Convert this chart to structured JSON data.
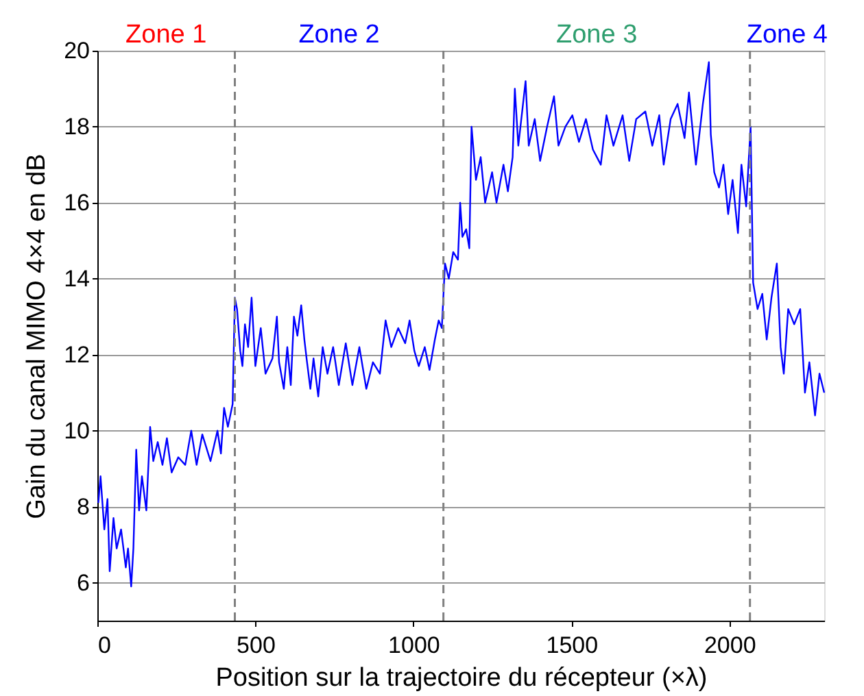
{
  "chart_data": {
    "type": "line",
    "xlabel": "Position sur la trajectoire du récepteur (×λ)",
    "ylabel": "Gain du canal MIMO 4×4 en dB",
    "xlim": [
      0,
      2300
    ],
    "xticks": [
      0,
      500,
      1000,
      1500,
      2000
    ],
    "ylim": [
      5,
      20
    ],
    "yticks": [
      6,
      8,
      10,
      12,
      14,
      16,
      18,
      20
    ],
    "grid": "y",
    "marker": "none",
    "line_style": "solid",
    "annotations": [
      "Zone 1",
      "Zone 2",
      "Zone 3",
      "Zone 4"
    ],
    "ref_lines": [
      {
        "axis": "x",
        "value": 435,
        "color": "#808080",
        "line_style": "dashed"
      },
      {
        "axis": "x",
        "value": 1095,
        "color": "#808080",
        "line_style": "dashed"
      },
      {
        "axis": "x",
        "value": 2065,
        "color": "#808080",
        "line_style": "dashed"
      }
    ],
    "series": [
      {
        "color": "#0000ff",
        "x": [
          3,
          10,
          22,
          32,
          39,
          51,
          61,
          75,
          90,
          97,
          107,
          114,
          123,
          132,
          141,
          155,
          167,
          177,
          191,
          206,
          220,
          235,
          256,
          278,
          297,
          314,
          332,
          358,
          380,
          391,
          401,
          413,
          428,
          435,
          442,
          452,
          459,
          467,
          477,
          488,
          500,
          517,
          532,
          554,
          568,
          575,
          590,
          601,
          612,
          622,
          633,
          645,
          655,
          662,
          674,
          684,
          699,
          713,
          728,
          746,
          764,
          786,
          807,
          829,
          851,
          872,
          894,
          912,
          930,
          952,
          974,
          988,
          1003,
          1017,
          1036,
          1051,
          1068,
          1080,
          1090,
          1100,
          1112,
          1126,
          1141,
          1148,
          1155,
          1167,
          1177,
          1184,
          1198,
          1213,
          1227,
          1249,
          1263,
          1285,
          1299,
          1314,
          1321,
          1332,
          1355,
          1365,
          1384,
          1401,
          1423,
          1445,
          1459,
          1481,
          1503,
          1524,
          1546,
          1568,
          1593,
          1611,
          1633,
          1662,
          1683,
          1705,
          1734,
          1756,
          1778,
          1792,
          1814,
          1836,
          1858,
          1872,
          1894,
          1916,
          1935,
          1941,
          1952,
          1967,
          1981,
          1996,
          2010,
          2027,
          2038,
          2053,
          2067,
          2075,
          2089,
          2104,
          2118,
          2133,
          2150,
          2162,
          2172,
          2186,
          2205,
          2224,
          2239,
          2253,
          2271,
          2285,
          2300
        ],
        "values": [
          8.1,
          8.8,
          7.4,
          8.2,
          6.3,
          7.7,
          6.9,
          7.4,
          6.4,
          6.9,
          5.9,
          6.9,
          9.5,
          7.9,
          8.8,
          7.9,
          10.1,
          9.2,
          9.7,
          9.1,
          9.8,
          8.9,
          9.3,
          9.1,
          10.0,
          9.1,
          9.9,
          9.2,
          10.0,
          9.4,
          10.6,
          10.1,
          10.7,
          13.5,
          13.2,
          12.1,
          11.7,
          12.8,
          12.2,
          13.5,
          11.7,
          12.7,
          11.5,
          11.9,
          13.0,
          11.8,
          11.1,
          12.2,
          11.2,
          13.0,
          12.5,
          13.3,
          12.4,
          11.9,
          11.1,
          11.9,
          10.9,
          12.2,
          11.5,
          12.2,
          11.2,
          12.3,
          11.2,
          12.2,
          11.1,
          11.8,
          11.5,
          12.9,
          12.2,
          12.7,
          12.3,
          12.9,
          12.1,
          11.7,
          12.2,
          11.6,
          12.4,
          12.9,
          12.7,
          14.4,
          14.0,
          14.7,
          14.5,
          16.0,
          15.1,
          15.3,
          14.8,
          18.0,
          16.6,
          17.2,
          16.0,
          16.8,
          16.0,
          17.0,
          16.3,
          17.2,
          19.0,
          17.5,
          19.2,
          17.5,
          18.2,
          17.1,
          18.0,
          18.8,
          17.5,
          18.0,
          18.3,
          17.6,
          18.2,
          17.4,
          17.0,
          18.3,
          17.5,
          18.3,
          17.1,
          18.2,
          18.4,
          17.5,
          18.3,
          17.0,
          18.2,
          18.6,
          17.7,
          18.9,
          17.0,
          18.6,
          19.7,
          17.8,
          16.8,
          16.4,
          17.0,
          15.7,
          16.6,
          15.2,
          17.0,
          15.9,
          18.0,
          13.9,
          13.2,
          13.6,
          12.4,
          13.5,
          14.4,
          12.2,
          11.5,
          13.2,
          12.8,
          13.2,
          11.0,
          11.8,
          10.4,
          11.5,
          11.0
        ]
      }
    ]
  }
}
